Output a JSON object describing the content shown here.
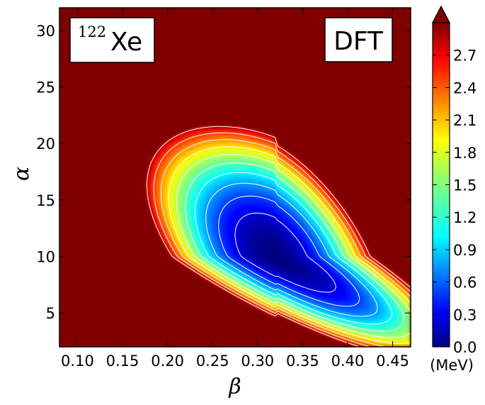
{
  "chart_data": {
    "type": "heatmap",
    "title": "",
    "xlabel": "β",
    "ylabel": "α",
    "xlim": [
      0.08,
      0.47
    ],
    "ylim": [
      2,
      32
    ],
    "x_ticks": [
      0.1,
      0.15,
      0.2,
      0.25,
      0.3,
      0.35,
      0.4,
      0.45
    ],
    "x_tick_labels": [
      "0.10",
      "0.15",
      "0.20",
      "0.25",
      "0.30",
      "0.35",
      "0.40",
      "0.45"
    ],
    "y_ticks": [
      5,
      10,
      15,
      20,
      25,
      30
    ],
    "y_tick_labels": [
      "5",
      "10",
      "15",
      "20",
      "25",
      "30"
    ],
    "nucleus_label": {
      "superscript": "122",
      "symbol": "Xe"
    },
    "method_label": "DFT",
    "colorbar": {
      "min": 0.0,
      "max": 3.0,
      "extend": "max",
      "unit": "(MeV)",
      "ticks": [
        0.0,
        0.3,
        0.6,
        0.9,
        1.2,
        1.5,
        1.8,
        2.1,
        2.4,
        2.7
      ],
      "tick_labels": [
        "0.0",
        "0.3",
        "0.6",
        "0.9",
        "1.2",
        "1.5",
        "1.8",
        "2.1",
        "2.4",
        "2.7"
      ]
    },
    "contour_levels": [
      0.3,
      0.6,
      0.9,
      1.2,
      1.5,
      1.8,
      2.1,
      2.4,
      2.7,
      3.0
    ],
    "minimum": {
      "beta": 0.32,
      "alpha": 10,
      "value": 0.0
    },
    "z_unit": "MeV"
  },
  "colors": {
    "background": "#800000",
    "contour_line": "#ffffff",
    "colormap": "jet"
  }
}
